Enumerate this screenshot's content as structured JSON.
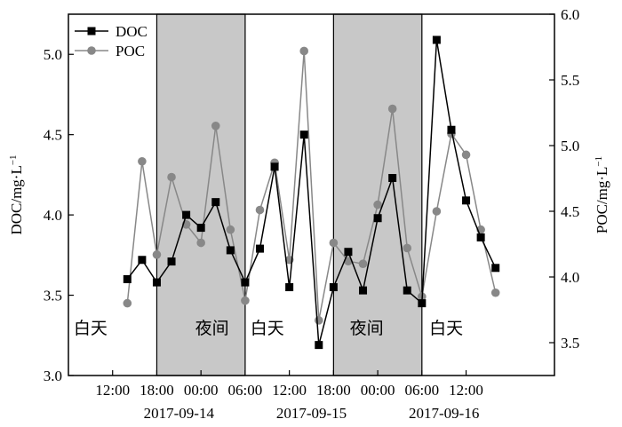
{
  "chart_data": {
    "type": "line",
    "x_unit": "hours",
    "x_range": [
      0,
      66
    ],
    "x_ticks": [
      {
        "x": 6,
        "label": "12:00"
      },
      {
        "x": 12,
        "label": "18:00"
      },
      {
        "x": 18,
        "label": "00:00"
      },
      {
        "x": 24,
        "label": "06:00"
      },
      {
        "x": 30,
        "label": "12:00"
      },
      {
        "x": 36,
        "label": "18:00"
      },
      {
        "x": 42,
        "label": "00:00"
      },
      {
        "x": 48,
        "label": "06:00"
      },
      {
        "x": 54,
        "label": "12:00"
      }
    ],
    "date_labels": [
      {
        "x": 15,
        "label": "2017-09-14"
      },
      {
        "x": 33,
        "label": "2017-09-15"
      },
      {
        "x": 51,
        "label": "2017-09-16"
      }
    ],
    "night_periods": [
      [
        12,
        24
      ],
      [
        36,
        48
      ]
    ],
    "night_color": "#c8c8c8",
    "period_labels": [
      {
        "x": 3,
        "label": "白天"
      },
      {
        "x": 19.5,
        "label": "夜间"
      },
      {
        "x": 27,
        "label": "白天"
      },
      {
        "x": 40.5,
        "label": "夜间"
      },
      {
        "x": 51.3,
        "label": "白天"
      }
    ],
    "y_left": {
      "label": "DOC/mg·L",
      "label_superscript": "−1",
      "range": [
        3.0,
        5.25
      ],
      "ticks": [
        "3.0",
        "3.5",
        "4.0",
        "4.5",
        "5.0"
      ]
    },
    "y_right": {
      "label": "POC/mg·L",
      "label_superscript": "−1",
      "range": [
        3.25,
        6.0
      ],
      "ticks": [
        "3.5",
        "4.0",
        "4.5",
        "5.0",
        "5.5",
        "6.0"
      ]
    },
    "series": [
      {
        "name": "DOC",
        "axis": "left",
        "color": "#000000",
        "marker": "square",
        "points": [
          [
            8,
            3.6
          ],
          [
            10,
            3.72
          ],
          [
            12,
            3.58
          ],
          [
            14,
            3.71
          ],
          [
            16,
            4.0
          ],
          [
            18,
            3.92
          ],
          [
            20,
            4.08
          ],
          [
            22,
            3.78
          ],
          [
            24,
            3.58
          ],
          [
            26,
            3.79
          ],
          [
            28,
            4.3
          ],
          [
            30,
            3.55
          ],
          [
            32,
            4.5
          ],
          [
            34,
            3.19
          ],
          [
            36,
            3.55
          ],
          [
            38,
            3.77
          ],
          [
            40,
            3.53
          ],
          [
            42,
            3.98
          ],
          [
            44,
            4.23
          ],
          [
            46,
            3.53
          ],
          [
            48,
            3.45
          ],
          [
            50,
            5.09
          ],
          [
            52,
            4.53
          ],
          [
            54,
            4.09
          ],
          [
            56,
            3.86
          ],
          [
            58,
            3.67
          ]
        ]
      },
      {
        "name": "POC",
        "axis": "right",
        "color": "#888888",
        "marker": "circle",
        "points": [
          [
            8,
            3.8
          ],
          [
            10,
            4.88
          ],
          [
            12,
            4.17
          ],
          [
            14,
            4.76
          ],
          [
            16,
            4.4
          ],
          [
            18,
            4.26
          ],
          [
            20,
            5.15
          ],
          [
            22,
            4.36
          ],
          [
            24,
            3.82
          ],
          [
            26,
            4.51
          ],
          [
            28,
            4.87
          ],
          [
            30,
            4.13
          ],
          [
            32,
            5.72
          ],
          [
            34,
            3.67
          ],
          [
            36,
            4.26
          ],
          [
            38,
            4.12
          ],
          [
            40,
            4.1
          ],
          [
            42,
            4.55
          ],
          [
            44,
            5.28
          ],
          [
            46,
            4.22
          ],
          [
            48,
            3.85
          ],
          [
            50,
            4.5
          ],
          [
            52,
            5.09
          ],
          [
            54,
            4.93
          ],
          [
            56,
            4.36
          ],
          [
            58,
            3.88
          ]
        ]
      }
    ],
    "legend": {
      "position": "top-left",
      "entries": [
        "DOC",
        "POC"
      ]
    }
  }
}
